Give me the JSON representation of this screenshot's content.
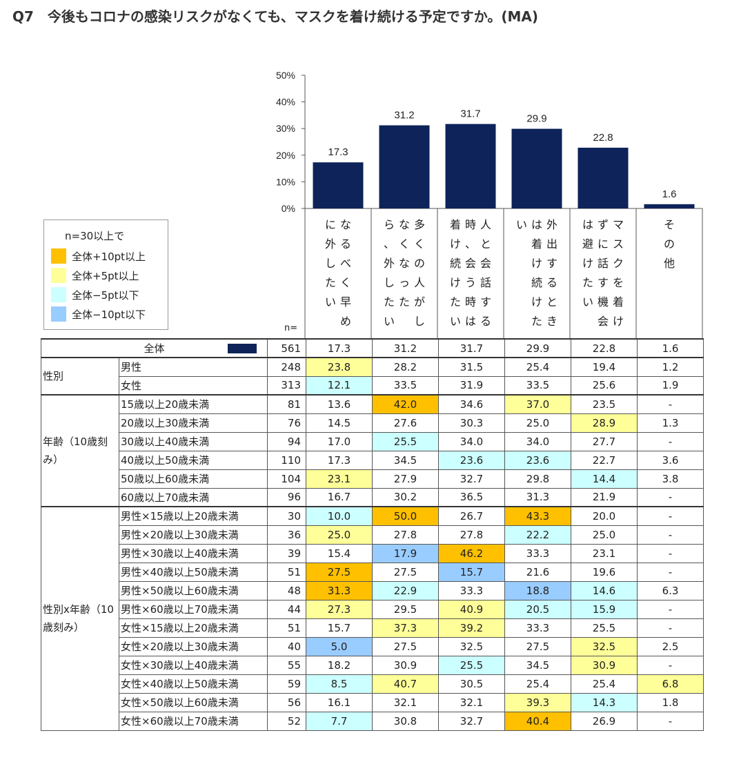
{
  "title": {
    "qnum": "Q7",
    "text": "今後もコロナの感染リスクがなくても、マスクを着け続ける予定ですか。(MA)"
  },
  "colors": {
    "bar": "#0d2359",
    "plus10": "#ffc000",
    "plus5": "#ffff99",
    "minus5": "#ccffff",
    "minus10": "#99ccff"
  },
  "legend": {
    "title": "n=30以上で",
    "items": [
      {
        "label": "全体+10pt以上",
        "color": "#ffc000"
      },
      {
        "label": "全体+5pt以上",
        "color": "#ffff99"
      },
      {
        "label": "全体−5pt以下",
        "color": "#ccffff"
      },
      {
        "label": "全体−10pt以下",
        "color": "#99ccff"
      }
    ]
  },
  "chart_data": {
    "type": "bar",
    "categories": [
      "なるべく早めに外したい",
      "多くの人がしなくなったら、外したい",
      "人と会話する時は、着け続けたい",
      "外出する時は着け続けたい",
      "マスクを着けずに話す機会は避けたい",
      "その他"
    ],
    "category_label_columns": [
      [
        "な る べ く 早 め",
        "に 外 し た い"
      ],
      [
        "多 く の 人 が し",
        "な く な っ た",
        "ら 、 外 し た い"
      ],
      [
        "人 と 会 話 す る",
        "時 、 会 う 時 は",
        "着 け 続 け た い"
      ],
      [
        "外 出 す る と き",
        "は 着 け 続 け た",
        "い"
      ],
      [
        "マ ス ク を 着 け",
        "ず に 話 す 機 会",
        "は 避 け た い"
      ],
      [
        "そ の 他"
      ]
    ],
    "values": [
      17.3,
      31.2,
      31.7,
      29.9,
      22.8,
      1.6
    ],
    "ylim": [
      0,
      50
    ],
    "yticks": [
      "50%",
      "40%",
      "30%",
      "20%",
      "10%",
      "0%"
    ],
    "grid": false
  },
  "table": {
    "n_label": "n=",
    "total": {
      "label": "全体",
      "n": "561",
      "values": [
        "17.3",
        "31.2",
        "31.7",
        "29.9",
        "22.8",
        "1.6"
      ]
    },
    "groups": [
      {
        "label": "性別",
        "rows": [
          {
            "label": "男性",
            "n": "248",
            "values": [
              "23.8",
              "28.2",
              "31.5",
              "25.4",
              "19.4",
              "1.2"
            ],
            "colors": [
              "c5",
              "",
              "",
              "",
              "",
              ""
            ]
          },
          {
            "label": "女性",
            "n": "313",
            "values": [
              "12.1",
              "33.5",
              "31.9",
              "33.5",
              "25.6",
              "1.9"
            ],
            "colors": [
              "cm5",
              "",
              "",
              "",
              "",
              ""
            ]
          }
        ]
      },
      {
        "label": "年齢（10歳刻み）",
        "rows": [
          {
            "label": "15歳以上20歳未満",
            "n": "81",
            "values": [
              "13.6",
              "42.0",
              "34.6",
              "37.0",
              "23.5",
              "-"
            ],
            "colors": [
              "",
              "c10",
              "",
              "c5",
              "",
              ""
            ]
          },
          {
            "label": "20歳以上30歳未満",
            "n": "76",
            "values": [
              "14.5",
              "27.6",
              "30.3",
              "25.0",
              "28.9",
              "1.3"
            ],
            "colors": [
              "",
              "",
              "",
              "",
              "c5",
              ""
            ]
          },
          {
            "label": "30歳以上40歳未満",
            "n": "94",
            "values": [
              "17.0",
              "25.5",
              "34.0",
              "34.0",
              "27.7",
              "-"
            ],
            "colors": [
              "",
              "cm5",
              "",
              "",
              "",
              ""
            ]
          },
          {
            "label": "40歳以上50歳未満",
            "n": "110",
            "values": [
              "17.3",
              "34.5",
              "23.6",
              "23.6",
              "22.7",
              "3.6"
            ],
            "colors": [
              "",
              "",
              "cm5",
              "cm5",
              "",
              ""
            ]
          },
          {
            "label": "50歳以上60歳未満",
            "n": "104",
            "values": [
              "23.1",
              "27.9",
              "32.7",
              "29.8",
              "14.4",
              "3.8"
            ],
            "colors": [
              "c5",
              "",
              "",
              "",
              "cm5",
              ""
            ]
          },
          {
            "label": "60歳以上70歳未満",
            "n": "96",
            "values": [
              "16.7",
              "30.2",
              "36.5",
              "31.3",
              "21.9",
              "-"
            ],
            "colors": [
              "",
              "",
              "",
              "",
              "",
              ""
            ]
          }
        ]
      },
      {
        "label": "性別x年齢（10歳刻み）",
        "rows": [
          {
            "label": "男性×15歳以上20歳未満",
            "n": "30",
            "values": [
              "10.0",
              "50.0",
              "26.7",
              "43.3",
              "20.0",
              "-"
            ],
            "colors": [
              "cm5",
              "c10",
              "",
              "c10",
              "",
              ""
            ]
          },
          {
            "label": "男性×20歳以上30歳未満",
            "n": "36",
            "values": [
              "25.0",
              "27.8",
              "27.8",
              "22.2",
              "25.0",
              "-"
            ],
            "colors": [
              "c5",
              "",
              "",
              "cm5",
              "",
              ""
            ]
          },
          {
            "label": "男性×30歳以上40歳未満",
            "n": "39",
            "values": [
              "15.4",
              "17.9",
              "46.2",
              "33.3",
              "23.1",
              "-"
            ],
            "colors": [
              "",
              "cm10",
              "c10",
              "",
              "",
              ""
            ]
          },
          {
            "label": "男性×40歳以上50歳未満",
            "n": "51",
            "values": [
              "27.5",
              "27.5",
              "15.7",
              "21.6",
              "19.6",
              "-"
            ],
            "colors": [
              "c10",
              "",
              "cm10",
              "",
              "",
              ""
            ]
          },
          {
            "label": "男性×50歳以上60歳未満",
            "n": "48",
            "values": [
              "31.3",
              "22.9",
              "33.3",
              "18.8",
              "14.6",
              "6.3"
            ],
            "colors": [
              "c10",
              "cm5",
              "",
              "cm10",
              "cm5",
              ""
            ]
          },
          {
            "label": "男性×60歳以上70歳未満",
            "n": "44",
            "values": [
              "27.3",
              "29.5",
              "40.9",
              "20.5",
              "15.9",
              "-"
            ],
            "colors": [
              "c5",
              "",
              "c5",
              "cm5",
              "cm5",
              ""
            ]
          },
          {
            "label": "女性×15歳以上20歳未満",
            "n": "51",
            "values": [
              "15.7",
              "37.3",
              "39.2",
              "33.3",
              "25.5",
              "-"
            ],
            "colors": [
              "",
              "c5",
              "c5",
              "",
              "",
              ""
            ]
          },
          {
            "label": "女性×20歳以上30歳未満",
            "n": "40",
            "values": [
              "5.0",
              "27.5",
              "32.5",
              "27.5",
              "32.5",
              "2.5"
            ],
            "colors": [
              "cm10",
              "",
              "",
              "",
              "c5",
              ""
            ]
          },
          {
            "label": "女性×30歳以上40歳未満",
            "n": "55",
            "values": [
              "18.2",
              "30.9",
              "25.5",
              "34.5",
              "30.9",
              "-"
            ],
            "colors": [
              "",
              "",
              "cm5",
              "",
              "c5",
              ""
            ]
          },
          {
            "label": "女性×40歳以上50歳未満",
            "n": "59",
            "values": [
              "8.5",
              "40.7",
              "30.5",
              "25.4",
              "25.4",
              "6.8"
            ],
            "colors": [
              "cm5",
              "c5",
              "",
              "",
              "",
              "c5"
            ]
          },
          {
            "label": "女性×50歳以上60歳未満",
            "n": "56",
            "values": [
              "16.1",
              "32.1",
              "32.1",
              "39.3",
              "14.3",
              "1.8"
            ],
            "colors": [
              "",
              "",
              "",
              "c5",
              "cm5",
              ""
            ]
          },
          {
            "label": "女性×60歳以上70歳未満",
            "n": "52",
            "values": [
              "7.7",
              "30.8",
              "32.7",
              "40.4",
              "26.9",
              "-"
            ],
            "colors": [
              "cm5",
              "",
              "",
              "c10",
              "",
              ""
            ]
          }
        ]
      }
    ]
  }
}
